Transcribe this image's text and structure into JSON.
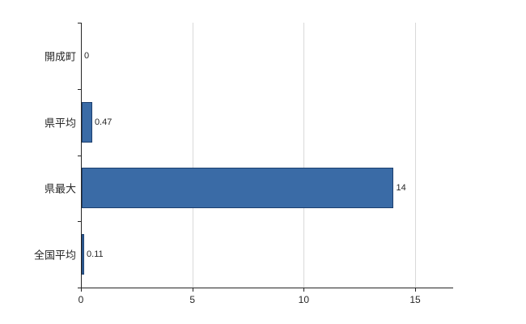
{
  "chart_data": {
    "type": "bar",
    "orientation": "horizontal",
    "title": "",
    "xlabel": "",
    "ylabel": "",
    "categories": [
      "開成町",
      "県平均",
      "県最大",
      "全国平均"
    ],
    "values": [
      0,
      0.47,
      14,
      0.11
    ],
    "value_labels": [
      "0",
      "0.47",
      "14",
      "0.11"
    ],
    "x_ticks": [
      0,
      5,
      10,
      15
    ],
    "x_tick_labels": [
      "0",
      "5",
      "10",
      "15"
    ],
    "xlim": [
      0,
      16.7
    ],
    "grid": true,
    "legend": false,
    "bar_color": "#3a6ba6",
    "bar_border_color": "#1c3f6e",
    "gridline_color": "#d9d9d9",
    "axis_color": "#262626"
  }
}
